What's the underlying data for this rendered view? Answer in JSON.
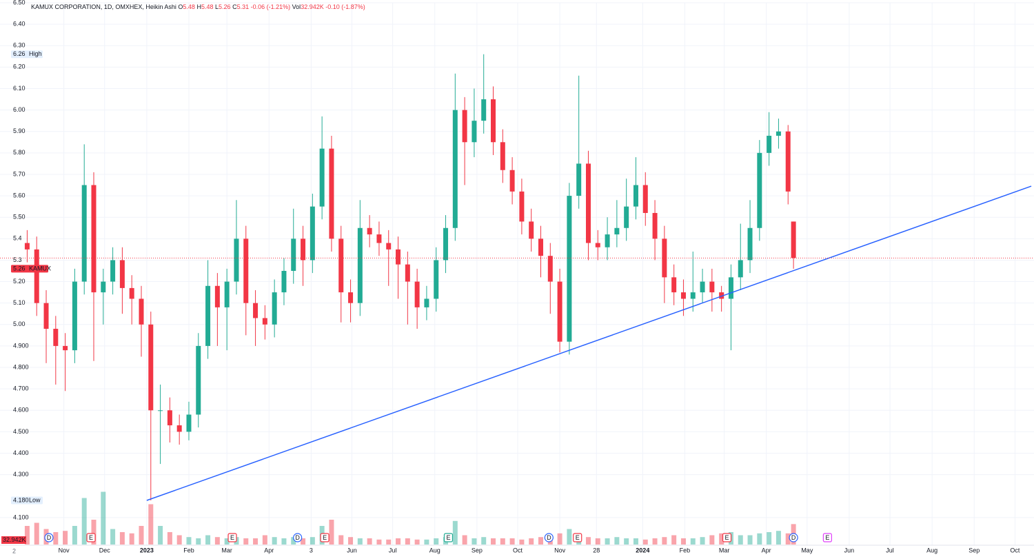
{
  "chart_data": {
    "type": "candlestick",
    "title": "KAMUX CORPORATION, 1D, OMXHEX, Heikin Ashi",
    "ohlc_legend": [
      {
        "key": "O",
        "val": "5.48"
      },
      {
        "key": "H",
        "val": "5.48"
      },
      {
        "key": "L",
        "val": "5.26"
      },
      {
        "key": "C",
        "val": "5.31"
      },
      {
        "key": "",
        "val": "-0.06 (-1.21%)"
      },
      {
        "key": "Vol",
        "val": "32.942K"
      },
      {
        "key": "",
        "val": "-0.10 (-1.87%)"
      }
    ],
    "x": [
      -27,
      -20,
      -13,
      -6,
      1,
      8,
      15,
      22,
      29,
      36,
      43,
      50,
      57,
      64,
      71,
      78,
      85,
      92,
      99,
      106,
      113,
      120,
      127,
      134,
      141,
      148,
      155,
      162,
      169,
      176,
      183,
      190,
      197,
      204,
      211,
      218,
      225,
      232,
      239,
      246,
      253,
      260,
      267,
      274,
      281,
      288,
      295,
      302,
      309,
      316,
      323,
      330,
      337,
      344,
      351,
      358,
      365,
      372,
      379,
      386,
      393,
      400,
      407,
      414,
      421,
      428,
      435,
      442,
      449,
      456,
      463,
      470,
      477,
      484,
      491,
      498,
      505,
      512,
      519,
      526,
      533,
      537
    ],
    "series": [
      {
        "name": "KAMUX",
        "up_color": "#22ab94",
        "down_color": "#f23645",
        "open": [
          5.38,
          5.35,
          5.1,
          4.98,
          4.9,
          4.88,
          5.2,
          5.65,
          5.15,
          5.2,
          5.3,
          5.17,
          5.12,
          5.0,
          4.6,
          4.6,
          4.53,
          4.5,
          4.58,
          4.9,
          5.18,
          5.08,
          5.2,
          5.4,
          5.1,
          5.03,
          5.0,
          5.15,
          5.25,
          5.4,
          5.3,
          5.55,
          5.82,
          5.4,
          5.15,
          5.1,
          5.45,
          5.42,
          5.38,
          5.35,
          5.28,
          5.2,
          5.08,
          5.12,
          5.3,
          5.45,
          6.0,
          5.85,
          5.95,
          6.05,
          5.85,
          5.72,
          5.62,
          5.48,
          5.4,
          5.32,
          5.2,
          4.92,
          5.6,
          5.75,
          5.38,
          5.36,
          5.42,
          5.45,
          5.55,
          5.65,
          5.52,
          5.4,
          5.22,
          5.15,
          5.12,
          5.15,
          5.2,
          5.15,
          5.12,
          5.22,
          5.3,
          5.45,
          5.8,
          5.88,
          5.9,
          5.48
        ],
        "high": [
          5.44,
          5.41,
          5.16,
          5.04,
          4.96,
          5.26,
          5.84,
          5.71,
          5.26,
          5.36,
          5.36,
          5.23,
          5.18,
          5.06,
          4.72,
          4.66,
          4.58,
          4.64,
          4.96,
          5.3,
          5.24,
          5.26,
          5.58,
          5.46,
          5.16,
          5.09,
          5.21,
          5.31,
          5.54,
          5.46,
          5.61,
          5.97,
          5.88,
          5.46,
          5.21,
          5.58,
          5.51,
          5.48,
          5.44,
          5.41,
          5.34,
          5.26,
          5.18,
          5.36,
          5.51,
          6.17,
          6.06,
          6.1,
          6.26,
          6.11,
          5.91,
          5.78,
          5.68,
          5.54,
          5.46,
          5.38,
          5.26,
          5.66,
          6.16,
          5.81,
          5.44,
          5.5,
          5.58,
          5.68,
          5.78,
          5.71,
          5.58,
          5.46,
          5.28,
          5.21,
          5.34,
          5.26,
          5.26,
          5.18,
          5.28,
          5.47,
          5.58,
          5.86,
          5.99,
          5.96,
          5.93,
          5.48
        ],
        "low": [
          5.29,
          5.04,
          4.82,
          4.72,
          4.69,
          4.82,
          5.14,
          4.83,
          5.0,
          5.14,
          5.05,
          5.0,
          4.85,
          4.18,
          4.35,
          4.45,
          4.44,
          4.46,
          4.52,
          4.84,
          4.9,
          4.88,
          5.14,
          4.95,
          4.9,
          4.93,
          4.94,
          5.09,
          5.19,
          5.18,
          5.24,
          5.49,
          5.34,
          5.01,
          5.01,
          5.04,
          5.36,
          5.32,
          5.18,
          5.12,
          5.0,
          4.98,
          5.02,
          5.06,
          5.24,
          5.39,
          5.65,
          5.78,
          5.89,
          5.79,
          5.66,
          5.56,
          5.42,
          5.34,
          5.22,
          5.05,
          4.87,
          4.86,
          5.54,
          5.3,
          5.3,
          5.3,
          5.36,
          5.39,
          5.49,
          5.46,
          5.3,
          5.1,
          5.09,
          5.04,
          5.06,
          5.1,
          5.06,
          5.06,
          4.88,
          5.16,
          5.24,
          5.39,
          5.74,
          5.82,
          5.56,
          5.26
        ],
        "close": [
          5.35,
          5.1,
          4.98,
          4.9,
          4.88,
          5.2,
          5.65,
          5.15,
          5.2,
          5.3,
          5.17,
          5.12,
          5.0,
          4.6,
          4.6,
          4.53,
          4.5,
          4.58,
          4.9,
          5.18,
          5.08,
          5.2,
          5.4,
          5.1,
          5.03,
          5.0,
          5.15,
          5.25,
          5.4,
          5.3,
          5.55,
          5.82,
          5.4,
          5.15,
          5.1,
          5.45,
          5.42,
          5.38,
          5.35,
          5.28,
          5.2,
          5.08,
          5.12,
          5.3,
          5.45,
          6.0,
          5.85,
          5.95,
          6.05,
          5.85,
          5.72,
          5.62,
          5.48,
          5.4,
          5.32,
          5.2,
          4.92,
          5.6,
          5.75,
          5.38,
          5.36,
          5.42,
          5.45,
          5.55,
          5.65,
          5.52,
          5.4,
          5.22,
          5.15,
          5.12,
          5.15,
          5.2,
          5.15,
          5.12,
          5.22,
          5.3,
          5.45,
          5.8,
          5.88,
          5.9,
          5.62,
          5.31
        ],
        "volume": [
          30,
          35,
          25,
          20,
          22,
          30,
          75,
          40,
          85,
          25,
          20,
          18,
          30,
          65,
          30,
          20,
          15,
          12,
          10,
          15,
          12,
          10,
          12,
          10,
          10,
          15,
          12,
          10,
          12,
          10,
          12,
          30,
          40,
          15,
          12,
          10,
          10,
          8,
          8,
          10,
          10,
          8,
          8,
          10,
          12,
          38,
          15,
          10,
          12,
          10,
          10,
          10,
          8,
          10,
          12,
          15,
          18,
          25,
          15,
          12,
          10,
          10,
          12,
          10,
          10,
          8,
          10,
          12,
          15,
          10,
          10,
          12,
          15,
          18,
          20,
          15,
          15,
          18,
          20,
          22,
          18,
          32.942
        ]
      }
    ],
    "volume_badge": "32.942K",
    "last_price_line": 5.31,
    "markers": [
      {
        "value": 6.26,
        "text": "High",
        "color": "#e3effd"
      },
      {
        "value": {
          "value": 4.18,
          "label": "4.180"
        },
        "text": "Low",
        "color": "#e3effd"
      },
      {
        "value": 5.26,
        "text": "KAMUX",
        "color": "#f23645"
      }
    ],
    "trendline": {
      "x": [
        61,
        712
      ],
      "y": [
        4.18,
        5.645
      ],
      "color": "#2962ff"
    },
    "events": [
      {
        "x": -11,
        "label": "D",
        "color": "#2962ff"
      },
      {
        "x": 20,
        "label": "E",
        "color": "#f23645"
      },
      {
        "x": 124,
        "label": "E",
        "color": "#f23645"
      },
      {
        "x": 172,
        "label": "D",
        "color": "#2962ff"
      },
      {
        "x": 192,
        "label": "E",
        "color": "#f23645"
      },
      {
        "x": 283,
        "label": "E",
        "color": "#22ab94"
      },
      {
        "x": 357,
        "label": "D",
        "color": "#2962ff"
      },
      {
        "x": 378,
        "label": "E",
        "color": "#f23645"
      },
      {
        "x": 488,
        "label": "E",
        "color": "#f23645"
      },
      {
        "x": 537,
        "label": "D",
        "color": "#2962ff"
      },
      {
        "x": 562,
        "label": "E",
        "color": "#e040fb"
      }
    ],
    "xlim": [
      -47,
      714
    ],
    "xticks": [
      {
        "value": 0,
        "label": "Nov"
      },
      {
        "value": 30,
        "label": "Dec"
      },
      {
        "value": 61,
        "label": "2023"
      },
      {
        "value": 92,
        "label": "Feb"
      },
      {
        "value": 120,
        "label": "Mar"
      },
      {
        "value": 151,
        "label": "Apr"
      },
      {
        "value": 182,
        "label": "3"
      },
      {
        "value": 212,
        "label": "Jun"
      },
      {
        "value": 242,
        "label": "Jul"
      },
      {
        "value": 273,
        "label": "Aug"
      },
      {
        "value": 304,
        "label": "Sep"
      },
      {
        "value": 334,
        "label": "Oct"
      },
      {
        "value": 365,
        "label": "Nov"
      },
      {
        "value": 392,
        "label": "28"
      },
      {
        "value": 426,
        "label": "2024"
      },
      {
        "value": 457,
        "label": "Feb"
      },
      {
        "value": 486,
        "label": "Mar"
      },
      {
        "value": 517,
        "label": "Apr"
      },
      {
        "value": 547,
        "label": "May"
      },
      {
        "value": 578,
        "label": "Jun"
      },
      {
        "value": 608,
        "label": "Jul"
      },
      {
        "value": 639,
        "label": "Aug"
      },
      {
        "value": 670,
        "label": "Sep"
      },
      {
        "value": 700,
        "label": "Oct"
      }
    ],
    "ylim": [
      4.0,
      6.5
    ],
    "yticks": [
      {
        "value": 6.5,
        "label": "6.50"
      },
      {
        "value": 6.4,
        "label": "6.40"
      },
      {
        "value": 6.3,
        "label": "6.30"
      },
      {
        "value": 6.2,
        "label": "6.20"
      },
      {
        "value": 6.1,
        "label": "6.10"
      },
      {
        "value": 6.0,
        "label": "6.00"
      },
      {
        "value": 5.9,
        "label": "5.90"
      },
      {
        "value": 5.8,
        "label": "5.80"
      },
      {
        "value": 5.7,
        "label": "5.70"
      },
      {
        "value": 5.6,
        "label": "5.60"
      },
      {
        "value": 5.5,
        "label": "5.50"
      },
      5.4,
      5.3,
      {
        "value": 5.2,
        "label": "5.20"
      },
      {
        "value": 5.1,
        "label": "5.10"
      },
      {
        "value": 5.0,
        "label": "5.00"
      },
      {
        "value": 4.9,
        "label": "4.900"
      },
      {
        "value": 4.8,
        "label": "4.800"
      },
      {
        "value": 4.7,
        "label": "4.700"
      },
      {
        "value": 4.6,
        "label": "4.600"
      },
      {
        "value": 4.5,
        "label": "4.500"
      },
      {
        "value": 4.4,
        "label": "4.400"
      },
      {
        "value": 4.3,
        "label": "4.300"
      },
      {
        "value": 4.1,
        "label": "4.100"
      }
    ],
    "grid": true,
    "corner": "2"
  }
}
